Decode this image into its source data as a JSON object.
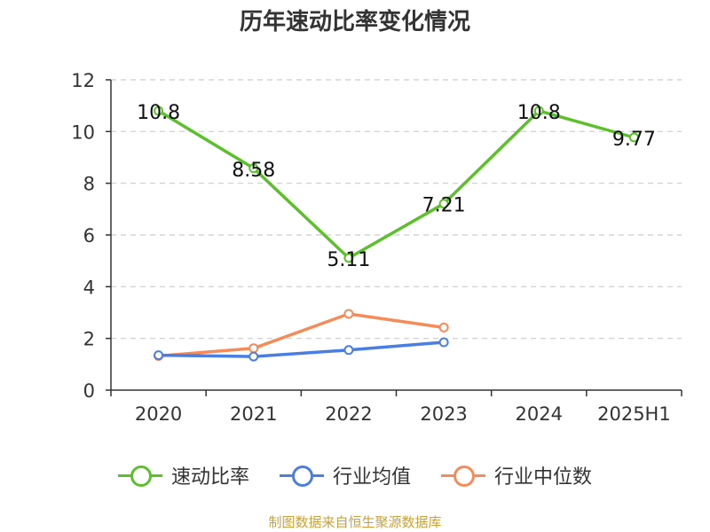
{
  "chart_data": {
    "type": "line",
    "title": "历年速动比率变化情况",
    "categories": [
      "2020",
      "2021",
      "2022",
      "2023",
      "2024",
      "2025H1"
    ],
    "y_ticks": [
      "0",
      "2",
      "4",
      "6",
      "8",
      "10",
      "12"
    ],
    "ylim": [
      0,
      12
    ],
    "grid": true,
    "legend_position": "bottom",
    "series": [
      {
        "name": "速动比率",
        "color": "#5cc02a",
        "values": [
          10.8,
          8.58,
          5.11,
          7.21,
          10.8,
          9.77
        ],
        "labels": [
          "10.8",
          "8.58",
          "5.11",
          "7.21",
          "10.8",
          "9.77"
        ]
      },
      {
        "name": "行业均值",
        "color": "#4a7ee0",
        "values": [
          1.35,
          1.3,
          1.55,
          1.85,
          null,
          null
        ]
      },
      {
        "name": "行业中位数",
        "color": "#f48c5a",
        "values": [
          1.32,
          1.62,
          2.95,
          2.42,
          null,
          null
        ]
      }
    ],
    "source": "制图数据来自恒生聚源数据库"
  }
}
